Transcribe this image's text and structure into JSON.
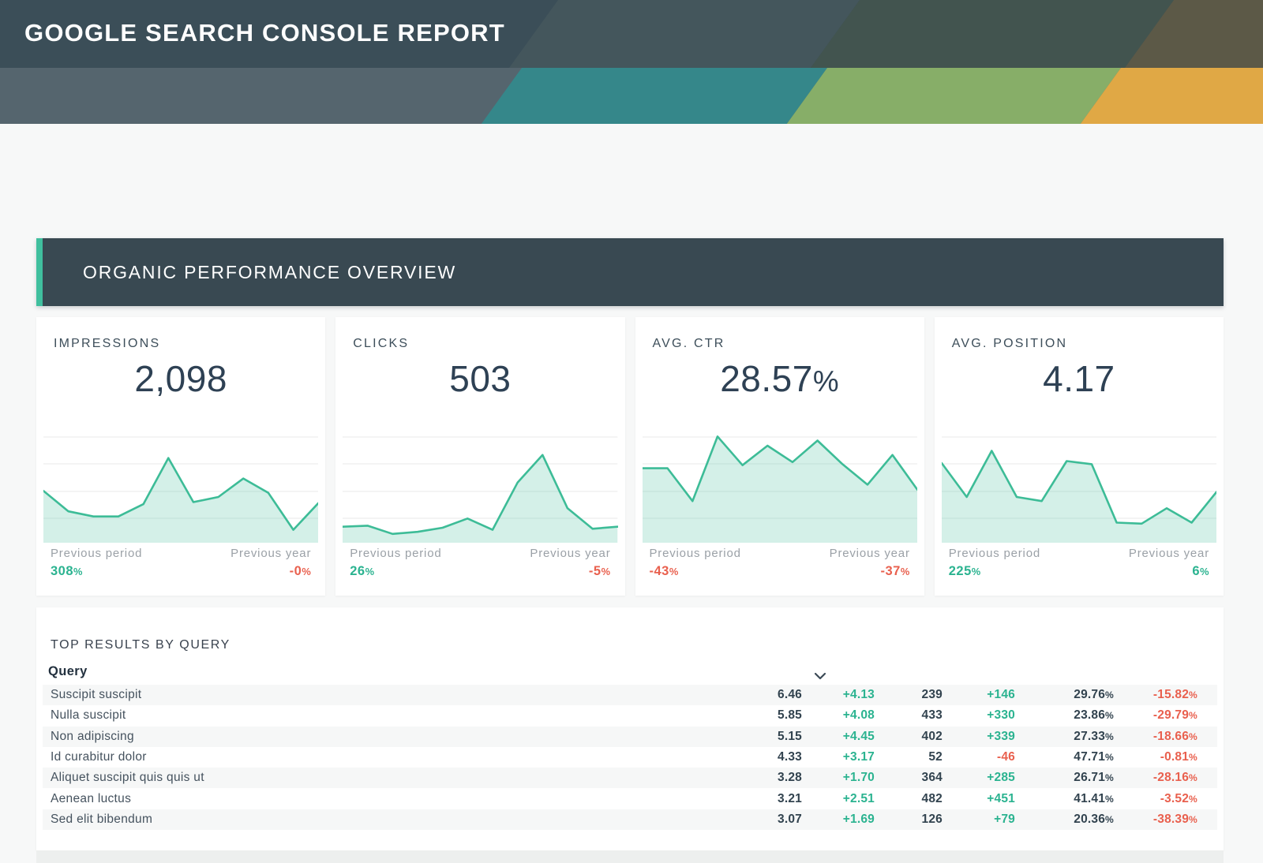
{
  "header": {
    "title": "GOOGLE SEARCH CONSOLE REPORT"
  },
  "section": {
    "title": "ORGANIC PERFORMANCE OVERVIEW"
  },
  "labels": {
    "previous_period": "Previous period",
    "previous_year": "Previous year"
  },
  "kpi_cards": [
    {
      "label": "IMPRESSIONS",
      "value": "2,098",
      "previous_period_change": "308%",
      "previous_year_change": "-0%"
    },
    {
      "label": "CLICKS",
      "value": "503",
      "previous_period_change": "26%",
      "previous_year_change": "-5%"
    },
    {
      "label": "AVG. CTR",
      "value": "28.57%",
      "previous_period_change": "-43%",
      "previous_year_change": "-37%"
    },
    {
      "label": "AVG. POSITION",
      "value": "4.17",
      "previous_period_change": "225%",
      "previous_year_change": "6%"
    }
  ],
  "table": {
    "title": "TOP RESULTS BY QUERY",
    "column_header": "Query",
    "sort_icon": "chevron-down-icon"
  },
  "chart_data": [
    {
      "type": "area",
      "title": "IMPRESSIONS trend",
      "legend_position": "none",
      "grid": true,
      "ylim": [
        0,
        1
      ],
      "values": [
        0.46,
        0.26,
        0.21,
        0.21,
        0.33,
        0.78,
        0.35,
        0.4,
        0.58,
        0.44,
        0.08,
        0.34
      ],
      "note": "sparkline, unlabeled axes, values normalized to chart height"
    },
    {
      "type": "area",
      "title": "CLICKS trend",
      "legend_position": "none",
      "grid": true,
      "ylim": [
        0,
        1
      ],
      "values": [
        0.11,
        0.12,
        0.04,
        0.06,
        0.1,
        0.19,
        0.08,
        0.54,
        0.81,
        0.29,
        0.09,
        0.11
      ],
      "note": "sparkline, unlabeled axes, values normalized to chart height"
    },
    {
      "type": "area",
      "title": "AVG. CTR trend",
      "legend_position": "none",
      "grid": true,
      "ylim": [
        0,
        1
      ],
      "values": [
        0.68,
        0.68,
        0.36,
        0.99,
        0.71,
        0.9,
        0.74,
        0.95,
        0.72,
        0.52,
        0.81,
        0.47
      ],
      "note": "sparkline, unlabeled axes, values normalized to chart height"
    },
    {
      "type": "area",
      "title": "AVG. POSITION trend",
      "legend_position": "none",
      "grid": true,
      "ylim": [
        0,
        1
      ],
      "values": [
        0.73,
        0.4,
        0.85,
        0.4,
        0.36,
        0.75,
        0.72,
        0.15,
        0.14,
        0.29,
        0.15,
        0.45
      ],
      "note": "sparkline, unlabeled axes, values normalized to chart height"
    },
    {
      "type": "table",
      "title": "TOP RESULTS BY QUERY",
      "columns": [
        "Query"
      ],
      "rows": [
        {
          "query": "Suscipit suscipit",
          "values": [
            "6.46",
            "+4.13",
            "239",
            "+146",
            "29.76%",
            "-15.82%"
          ]
        },
        {
          "query": "Nulla suscipit",
          "values": [
            "5.85",
            "+4.08",
            "433",
            "+330",
            "23.86%",
            "-29.79%"
          ]
        },
        {
          "query": "Non adipiscing",
          "values": [
            "5.15",
            "+4.45",
            "402",
            "+339",
            "27.33%",
            "-18.66%"
          ]
        },
        {
          "query": "Id curabitur dolor",
          "values": [
            "4.33",
            "+3.17",
            "52",
            "-46",
            "47.71%",
            "-0.81%"
          ]
        },
        {
          "query": "Aliquet suscipit quis quis ut",
          "values": [
            "3.28",
            "+1.70",
            "364",
            "+285",
            "26.71%",
            "-28.16%"
          ]
        },
        {
          "query": "Aenean luctus",
          "values": [
            "3.21",
            "+2.51",
            "482",
            "+451",
            "41.41%",
            "-3.52%"
          ]
        },
        {
          "query": "Sed elit bibendum",
          "values": [
            "3.07",
            "+1.69",
            "126",
            "+79",
            "20.36%",
            "-38.39%"
          ]
        }
      ]
    }
  ],
  "theme": {
    "css_vars": {
      "page-bg": "#f7f8f8",
      "card-bg": "#ffffff",
      "header-top": "#3b4e58",
      "header-band": "#55656e",
      "stripe-slate-light": "#44565c",
      "stripe-slate-green": "#42544f",
      "stripe-olive": "#5c5947",
      "stripe-teal": "#35878a",
      "stripe-green": "#87ae68",
      "stripe-orange": "#e0a845",
      "banner-bg": "#394952",
      "banner-accent": "#40bf9e",
      "spark": "#3dbc97",
      "grid-line": "#e8eaea",
      "pos": "#2bb390",
      "neg": "#e9604e",
      "ink": "#2e4154",
      "ink-strong": "#32434f",
      "muted": "#9ba1a7",
      "zebra": "#f6f7f7"
    }
  }
}
